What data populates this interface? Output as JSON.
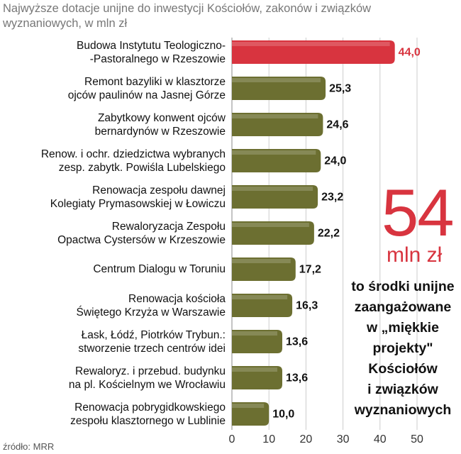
{
  "chart_data": {
    "type": "bar",
    "orientation": "horizontal",
    "title": "Najwyższe dotacje unijne do inwestycji Kościołów, zakonów i związków\nwyznaniowych, w mln zł",
    "categories": [
      "Budowa Instytutu Teologiczno-\n-Pastoralnego w Rzeszowie",
      "Remont bazyliki w klasztorze\nojców paulinów na Jasnej Górze",
      "Zabytkowy konwent ojców\nbernardynów w Rzeszowie",
      "Renow. i ochr. dziedzictwa wybranych\nzesp. zabytk. Powiśla Lubelskiego",
      "Renowacja zespołu dawnej\nKolegiaty Prymasowskiej w Łowiczu",
      "Rewaloryzacja Zespołu\nOpactwa Cystersów w Krzeszowie",
      "Centrum Dialogu w Toruniu",
      "Renowacja kościoła\nŚwiętego Krzyża w Warszawie",
      "Łask, Łódź, Piotrków Trybun.:\nstworzenie trzech centrów idei",
      "Rewaloryz. i przebud. budynku\nna pl. Kościelnym we Wrocławiu",
      "Renowacja pobrygidkowskiego\nzespołu klasztornego w Lublinie"
    ],
    "values": [
      44.0,
      25.3,
      24.6,
      24.0,
      23.2,
      22.2,
      17.2,
      16.3,
      13.6,
      13.6,
      10.0
    ],
    "value_labels": [
      "44,0",
      "25,3",
      "24,6",
      "24,0",
      "23,2",
      "22,2",
      "17,2",
      "16,3",
      "13,6",
      "13,6",
      "10,0"
    ],
    "colors": [
      "#d8343f",
      "#6c6f31",
      "#6c6f31",
      "#6c6f31",
      "#6c6f31",
      "#6c6f31",
      "#6c6f31",
      "#6c6f31",
      "#6c6f31",
      "#6c6f31",
      "#6c6f31"
    ],
    "xlim": [
      0,
      50
    ],
    "xticks": [
      0,
      10,
      20,
      30,
      40,
      50
    ],
    "grid": true,
    "annotation_number": "54",
    "annotation_unit": "mln zł",
    "annotation_text": "to środki unijne\nzaangażowane\nw „miękkie\nprojekty\"\nKościołów\ni związków\nwyznaniowych",
    "source": "źródło: MRR"
  }
}
